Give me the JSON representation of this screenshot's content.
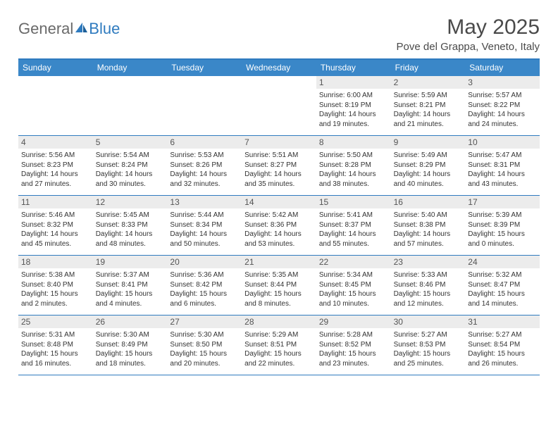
{
  "logo": {
    "part1": "General",
    "part2": "Blue"
  },
  "title": "May 2025",
  "subtitle": "Pove del Grappa, Veneto, Italy",
  "colors": {
    "header_bg": "#3a87c8",
    "border": "#2f7bbf",
    "daynum_bg": "#ececec",
    "text": "#333333",
    "title_text": "#4a4a4a",
    "white": "#ffffff"
  },
  "weekdays": [
    "Sunday",
    "Monday",
    "Tuesday",
    "Wednesday",
    "Thursday",
    "Friday",
    "Saturday"
  ],
  "weeks": [
    [
      {
        "empty": true
      },
      {
        "empty": true
      },
      {
        "empty": true
      },
      {
        "empty": true
      },
      {
        "n": "1",
        "sr": "Sunrise: 6:00 AM",
        "ss": "Sunset: 8:19 PM",
        "d1": "Daylight: 14 hours",
        "d2": "and 19 minutes."
      },
      {
        "n": "2",
        "sr": "Sunrise: 5:59 AM",
        "ss": "Sunset: 8:21 PM",
        "d1": "Daylight: 14 hours",
        "d2": "and 21 minutes."
      },
      {
        "n": "3",
        "sr": "Sunrise: 5:57 AM",
        "ss": "Sunset: 8:22 PM",
        "d1": "Daylight: 14 hours",
        "d2": "and 24 minutes."
      }
    ],
    [
      {
        "n": "4",
        "sr": "Sunrise: 5:56 AM",
        "ss": "Sunset: 8:23 PM",
        "d1": "Daylight: 14 hours",
        "d2": "and 27 minutes."
      },
      {
        "n": "5",
        "sr": "Sunrise: 5:54 AM",
        "ss": "Sunset: 8:24 PM",
        "d1": "Daylight: 14 hours",
        "d2": "and 30 minutes."
      },
      {
        "n": "6",
        "sr": "Sunrise: 5:53 AM",
        "ss": "Sunset: 8:26 PM",
        "d1": "Daylight: 14 hours",
        "d2": "and 32 minutes."
      },
      {
        "n": "7",
        "sr": "Sunrise: 5:51 AM",
        "ss": "Sunset: 8:27 PM",
        "d1": "Daylight: 14 hours",
        "d2": "and 35 minutes."
      },
      {
        "n": "8",
        "sr": "Sunrise: 5:50 AM",
        "ss": "Sunset: 8:28 PM",
        "d1": "Daylight: 14 hours",
        "d2": "and 38 minutes."
      },
      {
        "n": "9",
        "sr": "Sunrise: 5:49 AM",
        "ss": "Sunset: 8:29 PM",
        "d1": "Daylight: 14 hours",
        "d2": "and 40 minutes."
      },
      {
        "n": "10",
        "sr": "Sunrise: 5:47 AM",
        "ss": "Sunset: 8:31 PM",
        "d1": "Daylight: 14 hours",
        "d2": "and 43 minutes."
      }
    ],
    [
      {
        "n": "11",
        "sr": "Sunrise: 5:46 AM",
        "ss": "Sunset: 8:32 PM",
        "d1": "Daylight: 14 hours",
        "d2": "and 45 minutes."
      },
      {
        "n": "12",
        "sr": "Sunrise: 5:45 AM",
        "ss": "Sunset: 8:33 PM",
        "d1": "Daylight: 14 hours",
        "d2": "and 48 minutes."
      },
      {
        "n": "13",
        "sr": "Sunrise: 5:44 AM",
        "ss": "Sunset: 8:34 PM",
        "d1": "Daylight: 14 hours",
        "d2": "and 50 minutes."
      },
      {
        "n": "14",
        "sr": "Sunrise: 5:42 AM",
        "ss": "Sunset: 8:36 PM",
        "d1": "Daylight: 14 hours",
        "d2": "and 53 minutes."
      },
      {
        "n": "15",
        "sr": "Sunrise: 5:41 AM",
        "ss": "Sunset: 8:37 PM",
        "d1": "Daylight: 14 hours",
        "d2": "and 55 minutes."
      },
      {
        "n": "16",
        "sr": "Sunrise: 5:40 AM",
        "ss": "Sunset: 8:38 PM",
        "d1": "Daylight: 14 hours",
        "d2": "and 57 minutes."
      },
      {
        "n": "17",
        "sr": "Sunrise: 5:39 AM",
        "ss": "Sunset: 8:39 PM",
        "d1": "Daylight: 15 hours",
        "d2": "and 0 minutes."
      }
    ],
    [
      {
        "n": "18",
        "sr": "Sunrise: 5:38 AM",
        "ss": "Sunset: 8:40 PM",
        "d1": "Daylight: 15 hours",
        "d2": "and 2 minutes."
      },
      {
        "n": "19",
        "sr": "Sunrise: 5:37 AM",
        "ss": "Sunset: 8:41 PM",
        "d1": "Daylight: 15 hours",
        "d2": "and 4 minutes."
      },
      {
        "n": "20",
        "sr": "Sunrise: 5:36 AM",
        "ss": "Sunset: 8:42 PM",
        "d1": "Daylight: 15 hours",
        "d2": "and 6 minutes."
      },
      {
        "n": "21",
        "sr": "Sunrise: 5:35 AM",
        "ss": "Sunset: 8:44 PM",
        "d1": "Daylight: 15 hours",
        "d2": "and 8 minutes."
      },
      {
        "n": "22",
        "sr": "Sunrise: 5:34 AM",
        "ss": "Sunset: 8:45 PM",
        "d1": "Daylight: 15 hours",
        "d2": "and 10 minutes."
      },
      {
        "n": "23",
        "sr": "Sunrise: 5:33 AM",
        "ss": "Sunset: 8:46 PM",
        "d1": "Daylight: 15 hours",
        "d2": "and 12 minutes."
      },
      {
        "n": "24",
        "sr": "Sunrise: 5:32 AM",
        "ss": "Sunset: 8:47 PM",
        "d1": "Daylight: 15 hours",
        "d2": "and 14 minutes."
      }
    ],
    [
      {
        "n": "25",
        "sr": "Sunrise: 5:31 AM",
        "ss": "Sunset: 8:48 PM",
        "d1": "Daylight: 15 hours",
        "d2": "and 16 minutes."
      },
      {
        "n": "26",
        "sr": "Sunrise: 5:30 AM",
        "ss": "Sunset: 8:49 PM",
        "d1": "Daylight: 15 hours",
        "d2": "and 18 minutes."
      },
      {
        "n": "27",
        "sr": "Sunrise: 5:30 AM",
        "ss": "Sunset: 8:50 PM",
        "d1": "Daylight: 15 hours",
        "d2": "and 20 minutes."
      },
      {
        "n": "28",
        "sr": "Sunrise: 5:29 AM",
        "ss": "Sunset: 8:51 PM",
        "d1": "Daylight: 15 hours",
        "d2": "and 22 minutes."
      },
      {
        "n": "29",
        "sr": "Sunrise: 5:28 AM",
        "ss": "Sunset: 8:52 PM",
        "d1": "Daylight: 15 hours",
        "d2": "and 23 minutes."
      },
      {
        "n": "30",
        "sr": "Sunrise: 5:27 AM",
        "ss": "Sunset: 8:53 PM",
        "d1": "Daylight: 15 hours",
        "d2": "and 25 minutes."
      },
      {
        "n": "31",
        "sr": "Sunrise: 5:27 AM",
        "ss": "Sunset: 8:54 PM",
        "d1": "Daylight: 15 hours",
        "d2": "and 26 minutes."
      }
    ]
  ]
}
